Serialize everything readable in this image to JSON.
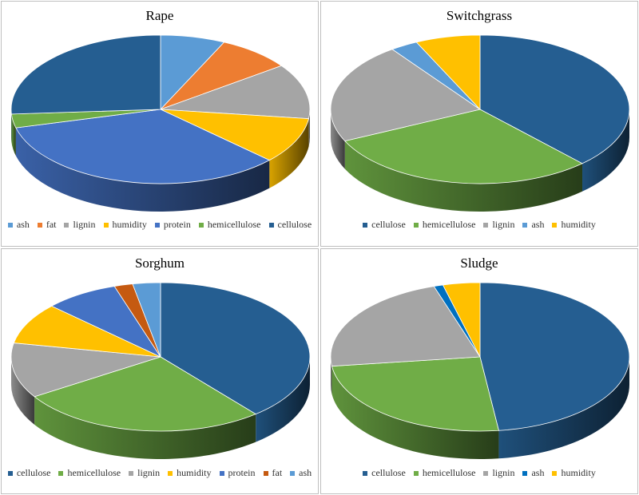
{
  "chart_data": [
    {
      "type": "pie",
      "title": "Rape",
      "categories": [
        "ash",
        "fat",
        "lignin",
        "humidity",
        "protein",
        "hemicellulose",
        "cellulose"
      ],
      "values": [
        7,
        8,
        12,
        10,
        34,
        3,
        26
      ],
      "colors": [
        "#5b9bd5",
        "#ed7d31",
        "#a5a5a5",
        "#ffc000",
        "#4472c4",
        "#70ad47",
        "#255e91"
      ],
      "legend": "bottom",
      "style": "3d"
    },
    {
      "type": "pie",
      "title": "Switchgrass",
      "categories": [
        "cellulose",
        "hemicellulose",
        "lignin",
        "ash",
        "humidity"
      ],
      "values": [
        38,
        30,
        22,
        3,
        7
      ],
      "colors": [
        "#255e91",
        "#70ad47",
        "#a5a5a5",
        "#5b9bd5",
        "#ffc000"
      ],
      "legend": "bottom",
      "style": "3d"
    },
    {
      "type": "pie",
      "title": "Sorghum",
      "categories": [
        "cellulose",
        "hemicellulose",
        "lignin",
        "humidity",
        "protein",
        "fat",
        "ash"
      ],
      "values": [
        39,
        27,
        12,
        9,
        8,
        2,
        3
      ],
      "colors": [
        "#255e91",
        "#70ad47",
        "#a5a5a5",
        "#ffc000",
        "#4472c4",
        "#c55a11",
        "#5b9bd5"
      ],
      "legend": "bottom",
      "style": "3d"
    },
    {
      "type": "pie",
      "title": "Sludge",
      "categories": [
        "cellulose",
        "hemicellulose",
        "lignin",
        "ash",
        "humidity"
      ],
      "values": [
        48,
        25,
        22,
        1,
        4
      ],
      "colors": [
        "#255e91",
        "#70ad47",
        "#a5a5a5",
        "#0070c0",
        "#ffc000"
      ],
      "legend": "bottom",
      "style": "3d"
    }
  ]
}
